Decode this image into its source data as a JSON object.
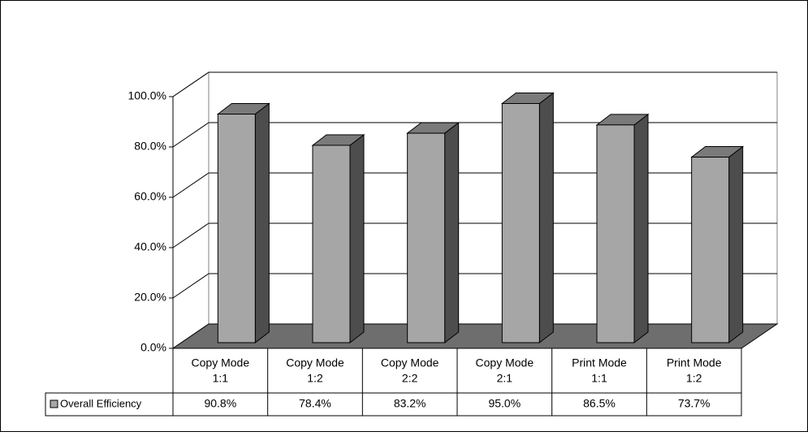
{
  "chart_data": {
    "type": "bar",
    "categories": [
      [
        "Copy Mode",
        "1:1"
      ],
      [
        "Copy Mode",
        "1:2"
      ],
      [
        "Copy Mode",
        "2:2"
      ],
      [
        "Copy Mode",
        "2:1"
      ],
      [
        "Print Mode",
        "1:1"
      ],
      [
        "Print Mode",
        "1:2"
      ]
    ],
    "series": [
      {
        "name": "Overall Efficiency",
        "values": [
          90.8,
          78.4,
          83.2,
          95.0,
          86.5,
          73.7
        ],
        "value_labels": [
          "90.8%",
          "78.4%",
          "83.2%",
          "95.0%",
          "86.5%",
          "73.7%"
        ]
      }
    ],
    "yticks": [
      "0.0%",
      "20.0%",
      "40.0%",
      "60.0%",
      "80.0%",
      "100.0%"
    ],
    "ylim": [
      0,
      100
    ],
    "grid": true,
    "style": "3d-column",
    "legend_placement": "data-table",
    "colors": {
      "bar_front": "#A6A6A6",
      "bar_top": "#7A7A7A",
      "bar_side": "#4D4D4D",
      "floor": "#6E6E6E",
      "gridline": "#000000"
    }
  }
}
